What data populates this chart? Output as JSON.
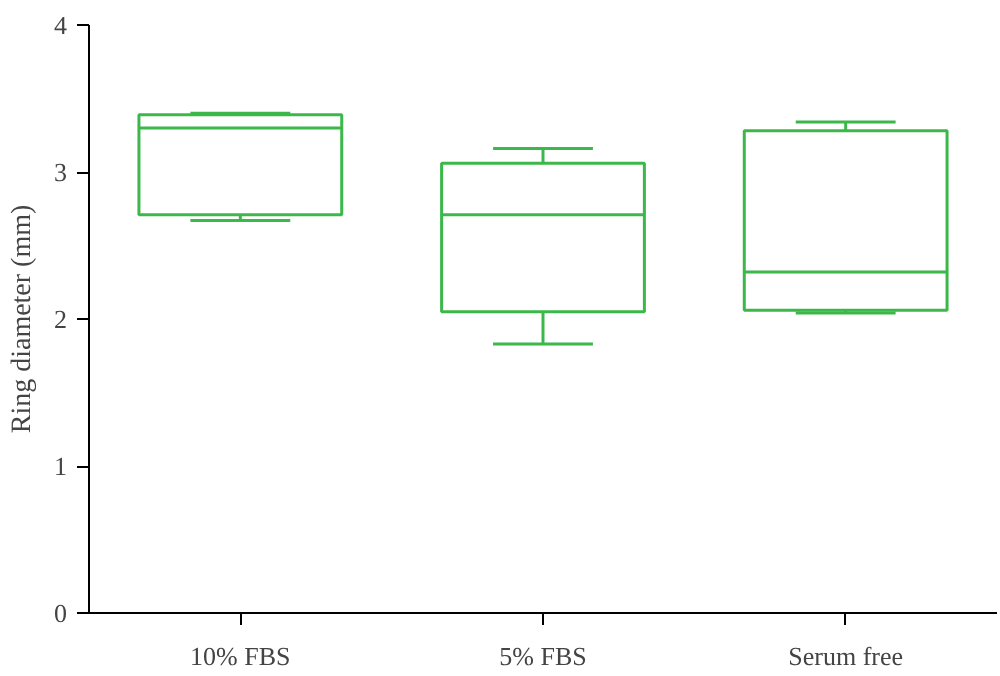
{
  "chart_data": {
    "type": "box",
    "ylabel": "Ring diameter (mm)",
    "categories": [
      "10% FBS",
      "5% FBS",
      "Serum free"
    ],
    "color": "#3cb84a",
    "ylim": [
      0,
      4
    ],
    "yticks": [
      0,
      1,
      2,
      3,
      4
    ],
    "grid": false,
    "boxes": [
      {
        "low": 2.67,
        "q1": 2.71,
        "median": 3.3,
        "q3": 3.39,
        "high": 3.4
      },
      {
        "low": 1.83,
        "q1": 2.05,
        "median": 2.71,
        "q3": 3.06,
        "high": 3.16
      },
      {
        "low": 2.04,
        "q1": 2.06,
        "median": 2.32,
        "q3": 3.28,
        "high": 3.34
      }
    ]
  }
}
